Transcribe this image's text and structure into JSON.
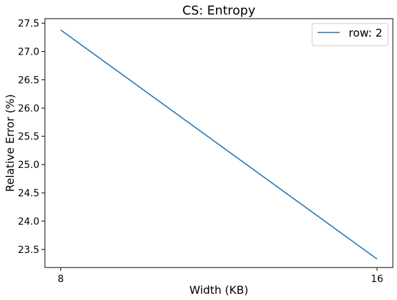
{
  "chart_data": {
    "type": "line",
    "title": "CS: Entropy",
    "xlabel": "Width (KB)",
    "ylabel": "Relative Error (%)",
    "x": [
      8,
      16
    ],
    "x_ticks": [
      "8",
      "16"
    ],
    "xlim": [
      7.6,
      16.4
    ],
    "ylim": [
      23.18,
      27.58
    ],
    "y_ticks": [
      23.5,
      24.0,
      24.5,
      25.0,
      25.5,
      26.0,
      26.5,
      27.0,
      27.5
    ],
    "y_tick_labels": [
      "23.5",
      "24.0",
      "24.5",
      "25.0",
      "25.5",
      "26.0",
      "26.5",
      "27.0",
      "27.5"
    ],
    "series": [
      {
        "name": "row: 2",
        "color": "#1f77b4",
        "values": [
          27.38,
          23.33
        ]
      }
    ],
    "grid": false,
    "legend_position": "top-right"
  }
}
